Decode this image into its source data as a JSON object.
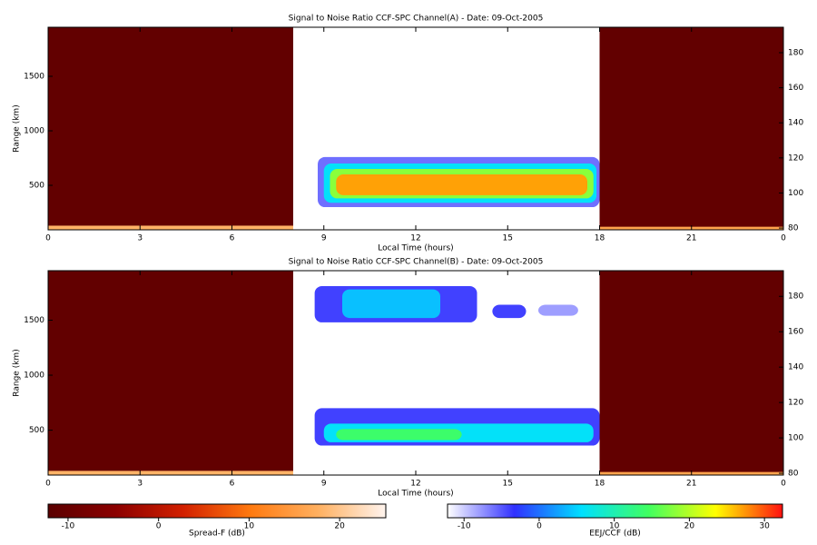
{
  "chart_data": [
    {
      "type": "heatmap",
      "title": "Signal to Noise Ratio CCF-SPC Channel(A) - Date: 09-Oct-2005",
      "xlabel": "Local Time (hours)",
      "ylabel": "Range (km)",
      "xlim": [
        0,
        24
      ],
      "xticks": [
        0,
        3,
        6,
        9,
        12,
        15,
        18,
        21,
        {
          "value": 24,
          "label": "0"
        }
      ],
      "ylim": [
        92,
        1950
      ],
      "yticks": [
        500,
        1000,
        1500
      ],
      "y2lim": [
        79,
        194.5
      ],
      "y2ticks": [
        80,
        100,
        120,
        140,
        160,
        180
      ],
      "cells": [
        {
          "x": [
            0,
            8
          ],
          "y": [
            92,
            1950
          ],
          "value": -11,
          "colorbar": 2
        },
        {
          "x": [
            18,
            24
          ],
          "y": [
            92,
            1950
          ],
          "value": -11,
          "colorbar": 2
        },
        {
          "x": [
            0,
            8
          ],
          "y": [
            92,
            130
          ],
          "value": 18,
          "colorbar": 2
        },
        {
          "x": [
            18,
            24
          ],
          "y": [
            92,
            120
          ],
          "value": 16,
          "colorbar": 2
        },
        {
          "x": [
            8.8,
            18
          ],
          "y": [
            300,
            760
          ],
          "value": -6,
          "colorbar": 3
        },
        {
          "x": [
            9,
            17.9
          ],
          "y": [
            340,
            700
          ],
          "value": 6,
          "colorbar": 3
        },
        {
          "x": [
            9.2,
            17.8
          ],
          "y": [
            380,
            650
          ],
          "value": 18,
          "colorbar": 3
        },
        {
          "x": [
            9.4,
            17.6
          ],
          "y": [
            410,
            600
          ],
          "value": 27,
          "colorbar": 3
        }
      ]
    },
    {
      "type": "heatmap",
      "title": "Signal to Noise Ratio CCF-SPC Channel(B) - Date: 09-Oct-2005",
      "xlabel": "Local Time (hours)",
      "ylabel": "Range (km)",
      "xlim": [
        0,
        24
      ],
      "xticks": [
        0,
        3,
        6,
        9,
        12,
        15,
        18,
        21,
        {
          "value": 24,
          "label": "0"
        }
      ],
      "ylim": [
        92,
        1950
      ],
      "yticks": [
        500,
        1000,
        1500
      ],
      "y2lim": [
        79,
        194.5
      ],
      "y2ticks": [
        80,
        100,
        120,
        140,
        160,
        180
      ],
      "cells": [
        {
          "x": [
            0,
            8
          ],
          "y": [
            92,
            1950
          ],
          "value": -11,
          "colorbar": 2
        },
        {
          "x": [
            18,
            24
          ],
          "y": [
            92,
            1950
          ],
          "value": -11,
          "colorbar": 2
        },
        {
          "x": [
            0,
            8
          ],
          "y": [
            92,
            130
          ],
          "value": 18,
          "colorbar": 2
        },
        {
          "x": [
            18,
            24
          ],
          "y": [
            92,
            120
          ],
          "value": 16,
          "colorbar": 2
        },
        {
          "x": [
            8.7,
            18
          ],
          "y": [
            360,
            700
          ],
          "value": -4,
          "colorbar": 3
        },
        {
          "x": [
            9,
            17.8
          ],
          "y": [
            390,
            560
          ],
          "value": 6,
          "colorbar": 3
        },
        {
          "x": [
            9.4,
            13.5
          ],
          "y": [
            410,
            510
          ],
          "value": 14,
          "colorbar": 3
        },
        {
          "x": [
            8.7,
            14
          ],
          "y": [
            1480,
            1810
          ],
          "value": -4,
          "colorbar": 3
        },
        {
          "x": [
            9.6,
            12.8
          ],
          "y": [
            1520,
            1780
          ],
          "value": 4,
          "colorbar": 3
        },
        {
          "x": [
            14.5,
            15.6
          ],
          "y": [
            1520,
            1640
          ],
          "value": -4,
          "colorbar": 3
        },
        {
          "x": [
            16,
            17.3
          ],
          "y": [
            1540,
            1640
          ],
          "value": -8,
          "colorbar": 3
        }
      ]
    },
    {
      "type": "colorbar",
      "label": "Spread-F (dB)",
      "lim": [
        -12.2,
        25.1
      ],
      "ticks": [
        -10,
        0,
        10,
        20
      ],
      "colors": [
        "#5a0000",
        "#8b0000",
        "#d22000",
        "#ff7a10",
        "#ffb060",
        "#fff4ee"
      ]
    },
    {
      "type": "colorbar",
      "label": "EEJ/CCF (dB)",
      "lim": [
        -12.2,
        32.4
      ],
      "ticks": [
        -10,
        0,
        10,
        20,
        30
      ],
      "colors": [
        "#ffffff",
        "#3030ff",
        "#00e0ff",
        "#40ff60",
        "#ffff00",
        "#ff1010"
      ]
    }
  ]
}
